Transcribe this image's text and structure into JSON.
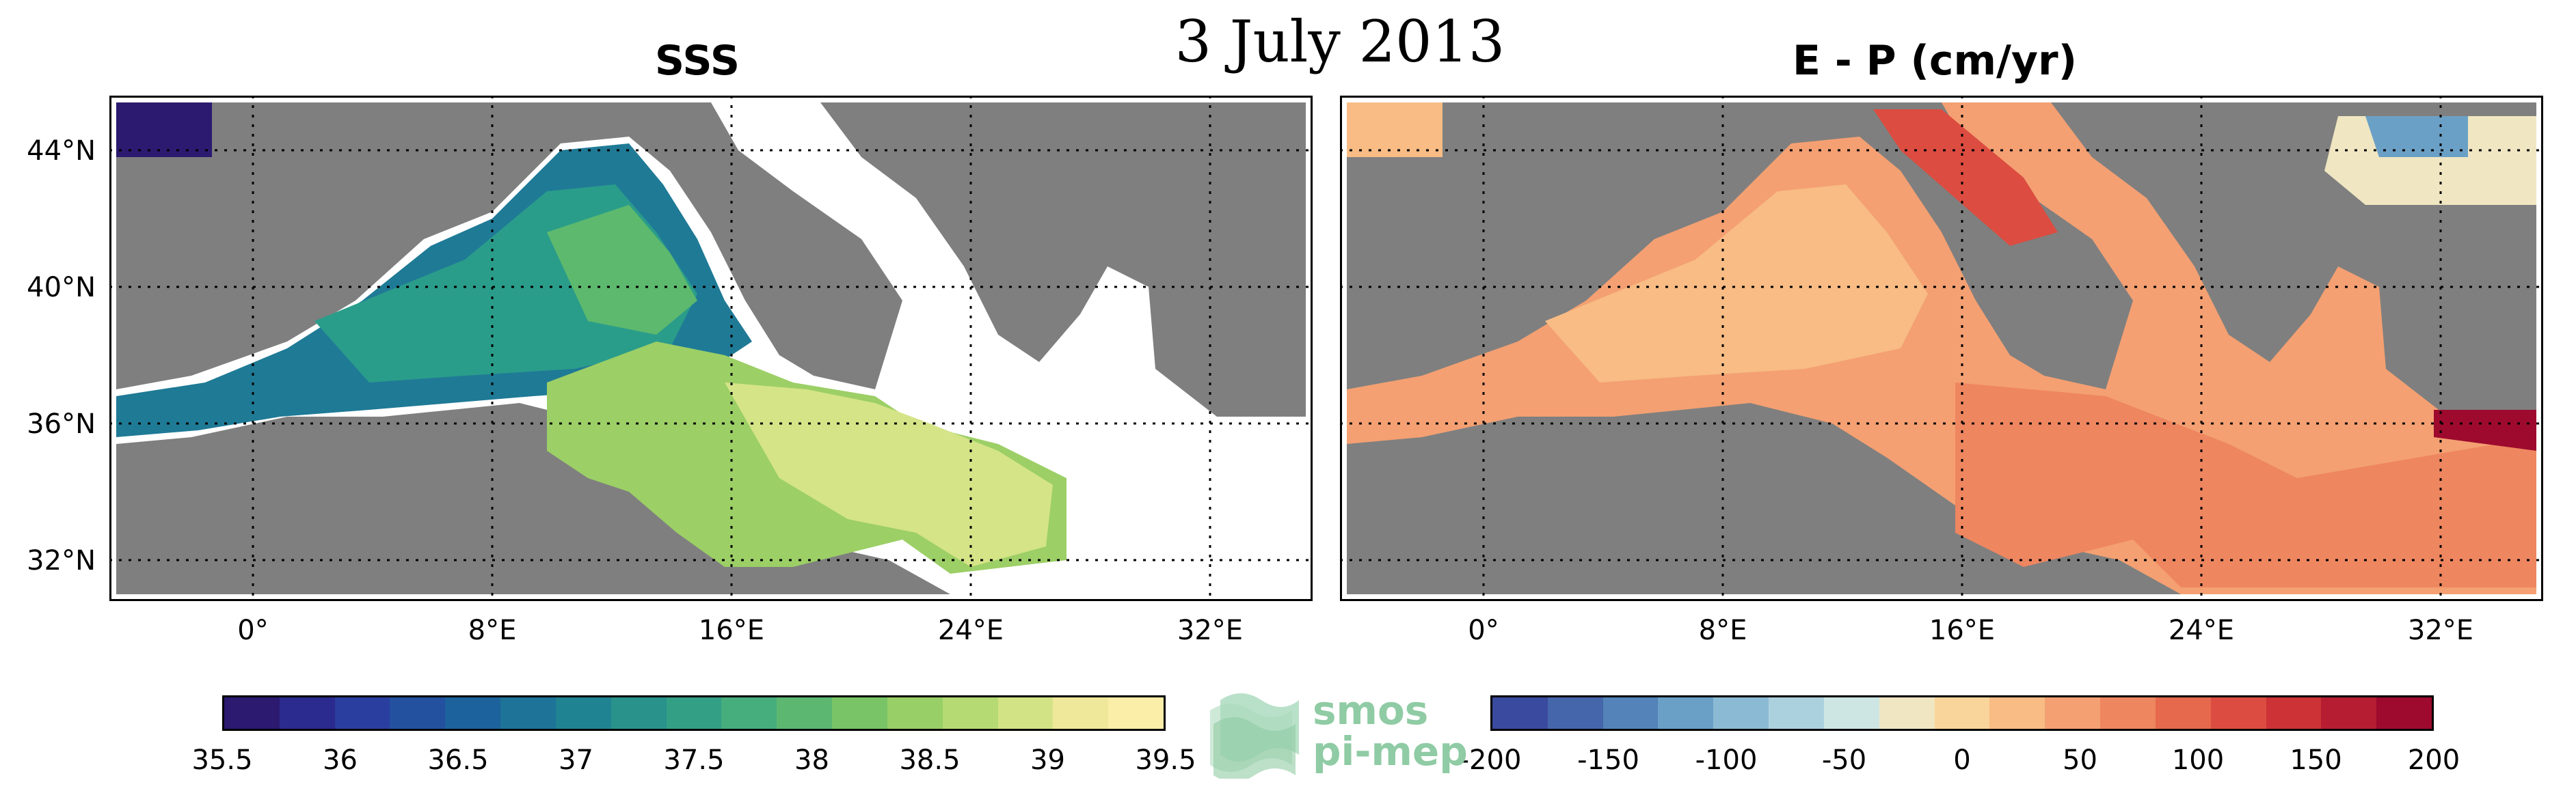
{
  "title": "3 July 2013",
  "panels": [
    {
      "id": "sss",
      "title": "SSS",
      "colorbar": {
        "ticks": [
          "35.5",
          "36",
          "36.5",
          "37",
          "37.5",
          "38",
          "38.5",
          "39",
          "39.5"
        ],
        "range": [
          35.5,
          39.5
        ],
        "colors": [
          "#2b1a6f",
          "#2b2a8e",
          "#2a3ea0",
          "#23519f",
          "#1c629c",
          "#1d7398",
          "#208391",
          "#28928b",
          "#339f85",
          "#46ad7c",
          "#5cb870",
          "#79c466",
          "#98cf66",
          "#b5da73",
          "#d2e386",
          "#efe89b",
          "#fbeea8"
        ]
      }
    },
    {
      "id": "ep",
      "title": "E - P (cm/yr)",
      "colorbar": {
        "ticks": [
          "-200",
          "-150",
          "-100",
          "-50",
          "0",
          "50",
          "100",
          "150",
          "200"
        ],
        "range": [
          -200,
          200
        ],
        "colors": [
          "#3a4a9e",
          "#4566ab",
          "#5383b8",
          "#6ba0c6",
          "#8bbad4",
          "#acd1de",
          "#cde6e4",
          "#f0e6c2",
          "#fad59b",
          "#f8bc84",
          "#f4a072",
          "#ee8660",
          "#e6684d",
          "#dc4c40",
          "#cc3236",
          "#b61d32",
          "#9e0a2e"
        ]
      }
    }
  ],
  "axes": {
    "lat_labels": [
      "44°N",
      "40°N",
      "36°N",
      "32°N"
    ],
    "lon_labels": [
      "0°",
      "8°E",
      "16°E",
      "24°E",
      "32°E"
    ]
  },
  "logo": {
    "line1": "smos",
    "line2": "pi-mep"
  },
  "colors": {
    "land": "#7f7f7f",
    "no_data": "#ffffff",
    "frame": "#000000"
  }
}
